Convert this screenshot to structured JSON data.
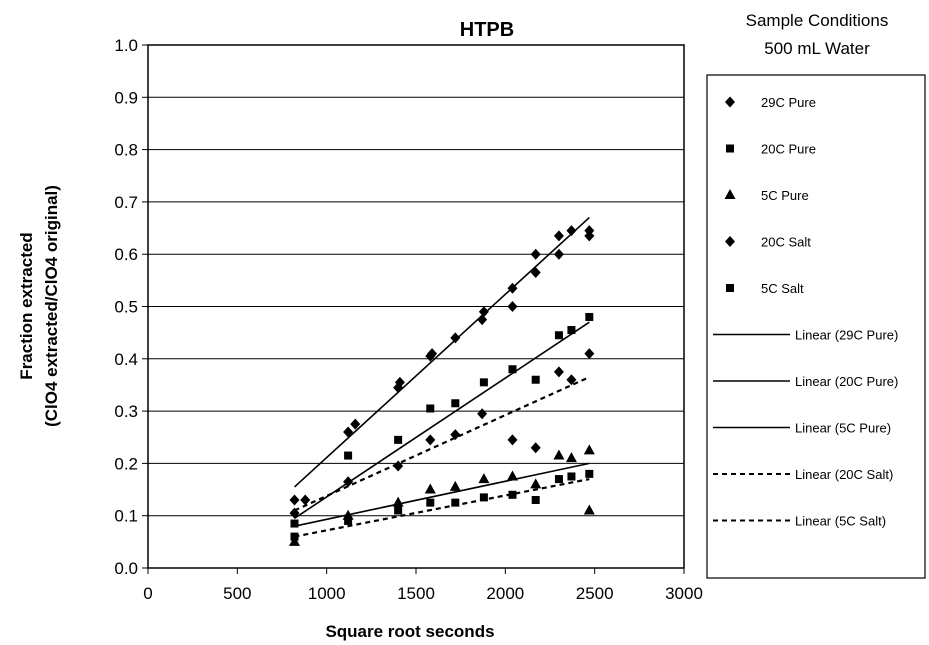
{
  "chart_data": {
    "type": "scatter",
    "title": "HTPB",
    "xlabel": "Square root seconds",
    "ylabel_line1": "Fraction extracted",
    "ylabel_line2": "(ClO4 extracted/ClO4 original)",
    "xlim": [
      0,
      3000
    ],
    "ylim": [
      0.0,
      1.0
    ],
    "xticks": [
      "0",
      "500",
      "1000",
      "1500",
      "2000",
      "2500",
      "3000"
    ],
    "yticks": [
      "0.0",
      "0.1",
      "0.2",
      "0.3",
      "0.4",
      "0.5",
      "0.6",
      "0.7",
      "0.8",
      "0.9",
      "1.0"
    ],
    "grid": "horizontal",
    "legend_position": "right",
    "conditions_line1": "Sample Conditions",
    "conditions_line2": "500 mL Water",
    "series": [
      {
        "name": "29C Pure",
        "marker": "diamond",
        "points": [
          [
            820,
            0.13
          ],
          [
            880,
            0.13
          ],
          [
            1120,
            0.26
          ],
          [
            1160,
            0.275
          ],
          [
            1400,
            0.345
          ],
          [
            1410,
            0.355
          ],
          [
            1580,
            0.405
          ],
          [
            1590,
            0.41
          ],
          [
            1720,
            0.44
          ],
          [
            1870,
            0.475
          ],
          [
            1880,
            0.49
          ],
          [
            2040,
            0.5
          ],
          [
            2040,
            0.535
          ],
          [
            2170,
            0.565
          ],
          [
            2170,
            0.6
          ],
          [
            2300,
            0.6
          ],
          [
            2300,
            0.635
          ],
          [
            2370,
            0.645
          ],
          [
            2470,
            0.635
          ],
          [
            2470,
            0.645
          ]
        ]
      },
      {
        "name": "20C Pure",
        "marker": "square",
        "points": [
          [
            820,
            0.085
          ],
          [
            1120,
            0.215
          ],
          [
            1400,
            0.245
          ],
          [
            1580,
            0.305
          ],
          [
            1720,
            0.315
          ],
          [
            1880,
            0.355
          ],
          [
            2040,
            0.38
          ],
          [
            2170,
            0.36
          ],
          [
            2300,
            0.445
          ],
          [
            2370,
            0.455
          ],
          [
            2470,
            0.48
          ]
        ]
      },
      {
        "name": "5C Pure",
        "marker": "triangle",
        "points": [
          [
            820,
            0.05
          ],
          [
            1120,
            0.1
          ],
          [
            1400,
            0.125
          ],
          [
            1580,
            0.15
          ],
          [
            1720,
            0.155
          ],
          [
            1880,
            0.17
          ],
          [
            2040,
            0.175
          ],
          [
            2170,
            0.16
          ],
          [
            2300,
            0.215
          ],
          [
            2370,
            0.21
          ],
          [
            2470,
            0.225
          ],
          [
            2470,
            0.11
          ]
        ]
      },
      {
        "name": "20C Salt",
        "marker": "diamond",
        "points": [
          [
            820,
            0.105
          ],
          [
            1120,
            0.165
          ],
          [
            1400,
            0.195
          ],
          [
            1580,
            0.245
          ],
          [
            1720,
            0.255
          ],
          [
            1870,
            0.295
          ],
          [
            2040,
            0.245
          ],
          [
            2170,
            0.23
          ],
          [
            2300,
            0.375
          ],
          [
            2370,
            0.36
          ],
          [
            2470,
            0.41
          ]
        ]
      },
      {
        "name": "5C Salt",
        "marker": "square",
        "points": [
          [
            820,
            0.06
          ],
          [
            1120,
            0.09
          ],
          [
            1400,
            0.11
          ],
          [
            1580,
            0.125
          ],
          [
            1720,
            0.125
          ],
          [
            1880,
            0.135
          ],
          [
            2040,
            0.14
          ],
          [
            2170,
            0.13
          ],
          [
            2300,
            0.17
          ],
          [
            2370,
            0.175
          ],
          [
            2470,
            0.18
          ]
        ]
      }
    ],
    "trendlines": [
      {
        "name": "Linear (29C Pure)",
        "style": "solid",
        "x": [
          820,
          2470
        ],
        "y": [
          0.155,
          0.67
        ]
      },
      {
        "name": "Linear (20C Pure)",
        "style": "solid",
        "x": [
          820,
          2470
        ],
        "y": [
          0.095,
          0.47
        ]
      },
      {
        "name": "Linear (5C Pure)",
        "style": "solid",
        "x": [
          820,
          2470
        ],
        "y": [
          0.08,
          0.2
        ]
      },
      {
        "name": "Linear (20C Salt)",
        "style": "dashed",
        "x": [
          820,
          2470
        ],
        "y": [
          0.11,
          0.365
        ]
      },
      {
        "name": "Linear (5C Salt)",
        "style": "dashed",
        "x": [
          820,
          2470
        ],
        "y": [
          0.06,
          0.17
        ]
      }
    ]
  }
}
